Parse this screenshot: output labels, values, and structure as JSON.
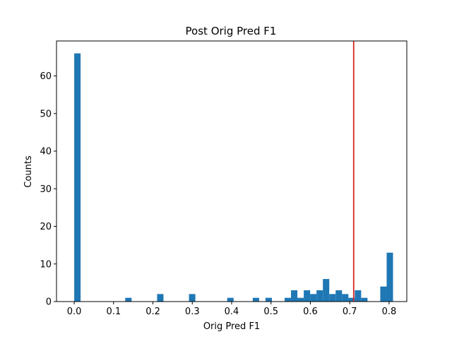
{
  "chart_data": {
    "type": "bar",
    "title": "Post Orig Pred F1",
    "xlabel": "Orig Pred F1",
    "ylabel": "Counts",
    "xlim": [
      -0.045,
      0.845
    ],
    "ylim": [
      0,
      69.3
    ],
    "xticks": [
      0.0,
      0.1,
      0.2,
      0.3,
      0.4,
      0.5,
      0.6,
      0.7,
      0.8
    ],
    "xtick_labels": [
      "0.0",
      "0.1",
      "0.2",
      "0.3",
      "0.4",
      "0.5",
      "0.6",
      "0.7",
      "0.8"
    ],
    "yticks": [
      0,
      10,
      20,
      30,
      40,
      50,
      60
    ],
    "ytick_labels": [
      "0",
      "10",
      "20",
      "30",
      "40",
      "50",
      "60"
    ],
    "bin_start": 0.0,
    "bin_width": 0.0162,
    "values": [
      66,
      0,
      0,
      0,
      0,
      0,
      0,
      0,
      1,
      0,
      0,
      0,
      0,
      2,
      0,
      0,
      0,
      0,
      2,
      0,
      0,
      0,
      0,
      0,
      1,
      0,
      0,
      0,
      1,
      0,
      1,
      0,
      0,
      1,
      3,
      1,
      3,
      2,
      3,
      6,
      2,
      3,
      2,
      1,
      3,
      1,
      0,
      0,
      4,
      13
    ],
    "bar_color": "#1f77b4",
    "reference_line": {
      "x": 0.71,
      "color": "#d62728"
    },
    "grid": false,
    "legend": "none"
  }
}
